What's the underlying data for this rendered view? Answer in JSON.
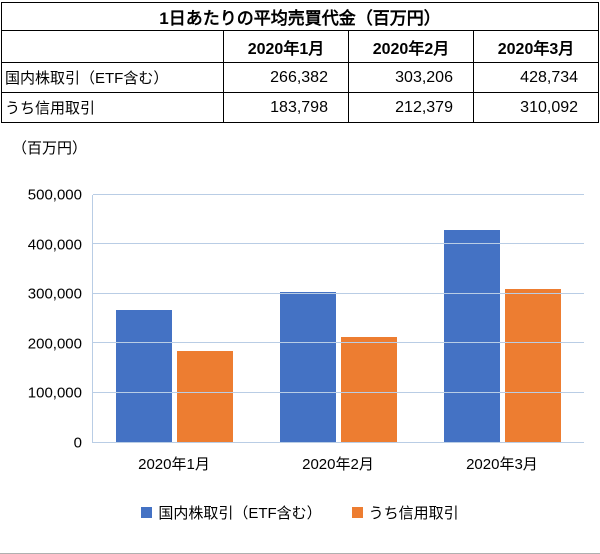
{
  "table": {
    "title": "1日あたりの平均売買代金（百万円）",
    "columns": [
      "2020年1月",
      "2020年2月",
      "2020年3月"
    ],
    "rows": [
      {
        "label": "国内株取引（ETF含む）",
        "values": [
          "266,382",
          "303,206",
          "428,734"
        ]
      },
      {
        "label": "うち信用取引",
        "values": [
          "183,798",
          "212,379",
          "310,092"
        ]
      }
    ]
  },
  "chart_data": {
    "type": "bar",
    "title": "",
    "unit_label": "（百万円）",
    "categories": [
      "2020年1月",
      "2020年2月",
      "2020年3月"
    ],
    "series": [
      {
        "name": "国内株取引（ETF含む）",
        "color": "#4472C4",
        "values": [
          266382,
          303206,
          428734
        ]
      },
      {
        "name": "うち信用取引",
        "color": "#ED7D31",
        "values": [
          183798,
          212379,
          310092
        ]
      }
    ],
    "ylim": [
      0,
      500000
    ],
    "yticks": [
      0,
      100000,
      200000,
      300000,
      400000,
      500000
    ],
    "grid": true,
    "grid_color": "#B9CDE5",
    "legend_position": "bottom"
  }
}
